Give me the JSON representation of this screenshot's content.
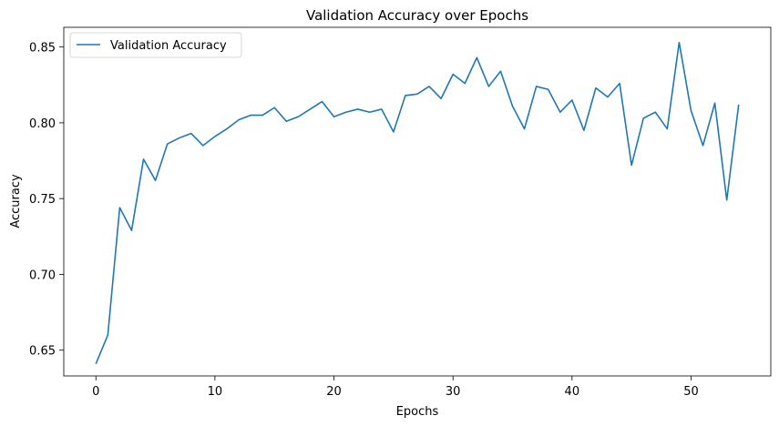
{
  "chart_data": {
    "type": "line",
    "title": "Validation Accuracy over Epochs",
    "xlabel": "Epochs",
    "ylabel": "Accuracy",
    "xlim": [
      -2.7,
      56.7
    ],
    "ylim": [
      0.633,
      0.863
    ],
    "xticks": [
      0,
      10,
      20,
      30,
      40,
      50
    ],
    "yticks": [
      0.65,
      0.7,
      0.75,
      0.8,
      0.85
    ],
    "xtick_labels": [
      "0",
      "10",
      "20",
      "30",
      "40",
      "50"
    ],
    "ytick_labels": [
      "0.65",
      "0.70",
      "0.75",
      "0.80",
      "0.85"
    ],
    "grid": false,
    "legend_position": "upper-left",
    "line_color": "#1f77b4",
    "series": [
      {
        "name": "Validation Accuracy",
        "x": [
          0,
          1,
          2,
          3,
          4,
          5,
          6,
          7,
          8,
          9,
          10,
          11,
          12,
          13,
          14,
          15,
          16,
          17,
          18,
          19,
          20,
          21,
          22,
          23,
          24,
          25,
          26,
          27,
          28,
          29,
          30,
          31,
          32,
          33,
          34,
          35,
          36,
          37,
          38,
          39,
          40,
          41,
          42,
          43,
          44,
          45,
          46,
          47,
          48,
          49,
          50,
          51,
          52,
          53,
          54
        ],
        "values": [
          0.641,
          0.66,
          0.744,
          0.729,
          0.776,
          0.762,
          0.786,
          0.79,
          0.793,
          0.785,
          0.791,
          0.796,
          0.802,
          0.805,
          0.805,
          0.81,
          0.801,
          0.804,
          0.809,
          0.814,
          0.804,
          0.807,
          0.809,
          0.807,
          0.809,
          0.794,
          0.818,
          0.819,
          0.824,
          0.816,
          0.832,
          0.826,
          0.843,
          0.824,
          0.834,
          0.811,
          0.796,
          0.824,
          0.822,
          0.807,
          0.815,
          0.795,
          0.823,
          0.817,
          0.826,
          0.772,
          0.803,
          0.807,
          0.796,
          0.853,
          0.808,
          0.785,
          0.813,
          0.749,
          0.812
        ]
      }
    ]
  }
}
